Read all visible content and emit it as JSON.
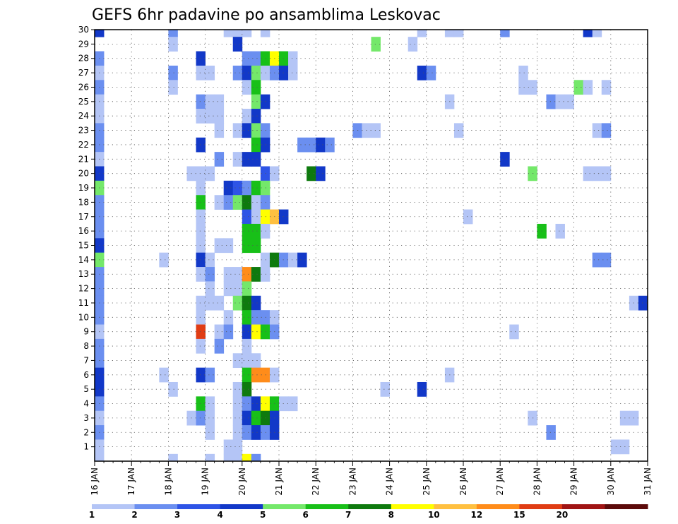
{
  "chart_data": {
    "type": "heatmap",
    "title": "GEFS 6hr padavine po ansamblima Leskovac",
    "x_tick_labels": [
      "16 JAN",
      "17 JAN",
      "18 JAN",
      "19 JAN",
      "20 JAN",
      "21 JAN",
      "22 JAN",
      "23 JAN",
      "24 JAN",
      "25 JAN",
      "26 JAN",
      "27 JAN",
      "28 JAN",
      "29 JAN",
      "30 JAN",
      "31 JAN"
    ],
    "y_tick_labels": [
      "1",
      "2",
      "3",
      "4",
      "5",
      "6",
      "7",
      "8",
      "9",
      "10",
      "11",
      "12",
      "13",
      "14",
      "15",
      "16",
      "17",
      "18",
      "19",
      "20",
      "21",
      "22",
      "23",
      "24",
      "25",
      "26",
      "27",
      "28",
      "29",
      "30"
    ],
    "xlim": [
      0,
      15
    ],
    "ylim": [
      0,
      30
    ],
    "time_step_hours": 6,
    "grid": "dotted",
    "colorbar": {
      "placement": "bottom",
      "labels": [
        "1",
        "2",
        "3",
        "4",
        "5",
        "6",
        "7",
        "8",
        "10",
        "12",
        "15",
        "20"
      ],
      "colors": [
        "#b4c5f6",
        "#6b8ff0",
        "#2e54e6",
        "#1238c8",
        "#74e86a",
        "#18c018",
        "#0e7a0e",
        "#ffff00",
        "#ffc040",
        "#ff8c1a",
        "#e03c14",
        "#a01414",
        "#5c0a0a"
      ]
    },
    "cells": [
      {
        "m": 30,
        "x": 0.0,
        "c": 3
      },
      {
        "m": 30,
        "x": 2.0,
        "c": 1
      },
      {
        "m": 30,
        "x": 3.5,
        "c": 0
      },
      {
        "m": 30,
        "x": 3.75,
        "c": 0
      },
      {
        "m": 30,
        "x": 4.0,
        "c": 0
      },
      {
        "m": 30,
        "x": 4.5,
        "c": 0
      },
      {
        "m": 30,
        "x": 8.75,
        "c": 0
      },
      {
        "m": 30,
        "x": 9.5,
        "c": 0
      },
      {
        "m": 30,
        "x": 9.75,
        "c": 0
      },
      {
        "m": 30,
        "x": 11.0,
        "c": 1
      },
      {
        "m": 30,
        "x": 13.25,
        "c": 3
      },
      {
        "m": 30,
        "x": 13.5,
        "c": 0
      },
      {
        "m": 29,
        "x": 2.0,
        "c": 0
      },
      {
        "m": 29,
        "x": 3.75,
        "c": 3
      },
      {
        "m": 29,
        "x": 7.5,
        "c": 4
      },
      {
        "m": 29,
        "x": 8.5,
        "c": 0
      },
      {
        "m": 28,
        "x": 0.0,
        "c": 1
      },
      {
        "m": 28,
        "x": 2.75,
        "c": 3
      },
      {
        "m": 28,
        "x": 4.0,
        "c": 1
      },
      {
        "m": 28,
        "x": 4.25,
        "c": 1
      },
      {
        "m": 28,
        "x": 4.5,
        "c": 5
      },
      {
        "m": 28,
        "x": 4.75,
        "c": 7
      },
      {
        "m": 28,
        "x": 5.0,
        "c": 5
      },
      {
        "m": 28,
        "x": 5.25,
        "c": 0
      },
      {
        "m": 27,
        "x": 0.0,
        "c": 0
      },
      {
        "m": 27,
        "x": 2.0,
        "c": 1
      },
      {
        "m": 27,
        "x": 2.75,
        "c": 0
      },
      {
        "m": 27,
        "x": 3.0,
        "c": 0
      },
      {
        "m": 27,
        "x": 3.75,
        "c": 1
      },
      {
        "m": 27,
        "x": 4.0,
        "c": 3
      },
      {
        "m": 27,
        "x": 4.25,
        "c": 4
      },
      {
        "m": 27,
        "x": 4.5,
        "c": 0
      },
      {
        "m": 27,
        "x": 4.75,
        "c": 1
      },
      {
        "m": 27,
        "x": 5.0,
        "c": 3
      },
      {
        "m": 27,
        "x": 5.25,
        "c": 0
      },
      {
        "m": 27,
        "x": 8.75,
        "c": 3
      },
      {
        "m": 27,
        "x": 9.0,
        "c": 1
      },
      {
        "m": 27,
        "x": 11.5,
        "c": 0
      },
      {
        "m": 26,
        "x": 0.0,
        "c": 1
      },
      {
        "m": 26,
        "x": 2.0,
        "c": 0
      },
      {
        "m": 26,
        "x": 4.0,
        "c": 0
      },
      {
        "m": 26,
        "x": 4.25,
        "c": 5
      },
      {
        "m": 26,
        "x": 11.5,
        "c": 0
      },
      {
        "m": 26,
        "x": 11.75,
        "c": 0
      },
      {
        "m": 26,
        "x": 13.0,
        "c": 4
      },
      {
        "m": 26,
        "x": 13.25,
        "c": 0
      },
      {
        "m": 26,
        "x": 13.75,
        "c": 0
      },
      {
        "m": 25,
        "x": 0.0,
        "c": 0
      },
      {
        "m": 25,
        "x": 2.75,
        "c": 1
      },
      {
        "m": 25,
        "x": 3.0,
        "c": 0
      },
      {
        "m": 25,
        "x": 3.25,
        "c": 0
      },
      {
        "m": 25,
        "x": 4.25,
        "c": 4
      },
      {
        "m": 25,
        "x": 4.5,
        "c": 3
      },
      {
        "m": 25,
        "x": 9.5,
        "c": 0
      },
      {
        "m": 25,
        "x": 12.25,
        "c": 1
      },
      {
        "m": 25,
        "x": 12.5,
        "c": 0
      },
      {
        "m": 25,
        "x": 12.75,
        "c": 0
      },
      {
        "m": 24,
        "x": 0.0,
        "c": 0
      },
      {
        "m": 24,
        "x": 2.75,
        "c": 0
      },
      {
        "m": 24,
        "x": 3.0,
        "c": 0
      },
      {
        "m": 24,
        "x": 3.25,
        "c": 0
      },
      {
        "m": 24,
        "x": 4.0,
        "c": 0
      },
      {
        "m": 24,
        "x": 4.25,
        "c": 3
      },
      {
        "m": 23,
        "x": 0.0,
        "c": 1
      },
      {
        "m": 23,
        "x": 3.25,
        "c": 0
      },
      {
        "m": 23,
        "x": 3.75,
        "c": 0
      },
      {
        "m": 23,
        "x": 4.0,
        "c": 3
      },
      {
        "m": 23,
        "x": 4.25,
        "c": 4
      },
      {
        "m": 23,
        "x": 4.5,
        "c": 1
      },
      {
        "m": 23,
        "x": 7.0,
        "c": 1
      },
      {
        "m": 23,
        "x": 7.25,
        "c": 0
      },
      {
        "m": 23,
        "x": 7.5,
        "c": 0
      },
      {
        "m": 23,
        "x": 9.75,
        "c": 0
      },
      {
        "m": 23,
        "x": 13.5,
        "c": 0
      },
      {
        "m": 23,
        "x": 13.75,
        "c": 1
      },
      {
        "m": 22,
        "x": 0.0,
        "c": 1
      },
      {
        "m": 22,
        "x": 2.75,
        "c": 3
      },
      {
        "m": 22,
        "x": 4.25,
        "c": 5
      },
      {
        "m": 22,
        "x": 4.5,
        "c": 3
      },
      {
        "m": 22,
        "x": 5.5,
        "c": 1
      },
      {
        "m": 22,
        "x": 5.75,
        "c": 1
      },
      {
        "m": 22,
        "x": 6.0,
        "c": 3
      },
      {
        "m": 22,
        "x": 6.25,
        "c": 1
      },
      {
        "m": 21,
        "x": 0.0,
        "c": 0
      },
      {
        "m": 21,
        "x": 3.25,
        "c": 1
      },
      {
        "m": 21,
        "x": 3.75,
        "c": 0
      },
      {
        "m": 21,
        "x": 4.0,
        "c": 3
      },
      {
        "m": 21,
        "x": 4.25,
        "c": 3
      },
      {
        "m": 21,
        "x": 11.0,
        "c": 3
      },
      {
        "m": 20,
        "x": 0.0,
        "c": 3
      },
      {
        "m": 20,
        "x": 2.5,
        "c": 0
      },
      {
        "m": 20,
        "x": 2.75,
        "c": 0
      },
      {
        "m": 20,
        "x": 3.0,
        "c": 0
      },
      {
        "m": 20,
        "x": 4.5,
        "c": 2
      },
      {
        "m": 20,
        "x": 4.75,
        "c": 0
      },
      {
        "m": 20,
        "x": 5.75,
        "c": 6
      },
      {
        "m": 20,
        "x": 6.0,
        "c": 3
      },
      {
        "m": 20,
        "x": 11.75,
        "c": 4
      },
      {
        "m": 20,
        "x": 13.25,
        "c": 0
      },
      {
        "m": 20,
        "x": 13.5,
        "c": 0
      },
      {
        "m": 20,
        "x": 13.75,
        "c": 0
      },
      {
        "m": 19,
        "x": 0.0,
        "c": 4
      },
      {
        "m": 19,
        "x": 2.75,
        "c": 0
      },
      {
        "m": 19,
        "x": 3.5,
        "c": 3
      },
      {
        "m": 19,
        "x": 3.75,
        "c": 2
      },
      {
        "m": 19,
        "x": 4.0,
        "c": 1
      },
      {
        "m": 19,
        "x": 4.25,
        "c": 5
      },
      {
        "m": 19,
        "x": 4.5,
        "c": 4
      },
      {
        "m": 18,
        "x": 0.0,
        "c": 1
      },
      {
        "m": 18,
        "x": 2.75,
        "c": 5
      },
      {
        "m": 18,
        "x": 3.25,
        "c": 0
      },
      {
        "m": 18,
        "x": 3.5,
        "c": 1
      },
      {
        "m": 18,
        "x": 3.75,
        "c": 4
      },
      {
        "m": 18,
        "x": 4.0,
        "c": 6
      },
      {
        "m": 18,
        "x": 4.25,
        "c": 0
      },
      {
        "m": 18,
        "x": 4.5,
        "c": 1
      },
      {
        "m": 17,
        "x": 0.0,
        "c": 1
      },
      {
        "m": 17,
        "x": 2.75,
        "c": 0
      },
      {
        "m": 17,
        "x": 4.0,
        "c": 2
      },
      {
        "m": 17,
        "x": 4.25,
        "c": 0
      },
      {
        "m": 17,
        "x": 4.5,
        "c": 7
      },
      {
        "m": 17,
        "x": 4.75,
        "c": 8
      },
      {
        "m": 17,
        "x": 5.0,
        "c": 3
      },
      {
        "m": 17,
        "x": 10.0,
        "c": 0
      },
      {
        "m": 16,
        "x": 0.0,
        "c": 1
      },
      {
        "m": 16,
        "x": 2.75,
        "c": 0
      },
      {
        "m": 16,
        "x": 4.0,
        "c": 5
      },
      {
        "m": 16,
        "x": 4.25,
        "c": 5
      },
      {
        "m": 16,
        "x": 4.5,
        "c": 0
      },
      {
        "m": 16,
        "x": 12.0,
        "c": 5
      },
      {
        "m": 16,
        "x": 12.5,
        "c": 0
      },
      {
        "m": 15,
        "x": 0.0,
        "c": 3
      },
      {
        "m": 15,
        "x": 2.75,
        "c": 0
      },
      {
        "m": 15,
        "x": 3.25,
        "c": 0
      },
      {
        "m": 15,
        "x": 3.5,
        "c": 0
      },
      {
        "m": 15,
        "x": 4.0,
        "c": 5
      },
      {
        "m": 15,
        "x": 4.25,
        "c": 5
      },
      {
        "m": 14,
        "x": 0.0,
        "c": 4
      },
      {
        "m": 14,
        "x": 1.75,
        "c": 0
      },
      {
        "m": 14,
        "x": 2.75,
        "c": 3
      },
      {
        "m": 14,
        "x": 3.0,
        "c": 0
      },
      {
        "m": 14,
        "x": 4.5,
        "c": 0
      },
      {
        "m": 14,
        "x": 4.75,
        "c": 6
      },
      {
        "m": 14,
        "x": 5.0,
        "c": 1
      },
      {
        "m": 14,
        "x": 5.25,
        "c": 0
      },
      {
        "m": 14,
        "x": 5.5,
        "c": 3
      },
      {
        "m": 14,
        "x": 13.5,
        "c": 1
      },
      {
        "m": 14,
        "x": 13.75,
        "c": 1
      },
      {
        "m": 13,
        "x": 0.0,
        "c": 1
      },
      {
        "m": 13,
        "x": 2.75,
        "c": 0
      },
      {
        "m": 13,
        "x": 3.0,
        "c": 1
      },
      {
        "m": 13,
        "x": 3.5,
        "c": 0
      },
      {
        "m": 13,
        "x": 3.75,
        "c": 0
      },
      {
        "m": 13,
        "x": 4.0,
        "c": 9
      },
      {
        "m": 13,
        "x": 4.25,
        "c": 6
      },
      {
        "m": 13,
        "x": 4.5,
        "c": 0
      },
      {
        "m": 12,
        "x": 0.0,
        "c": 1
      },
      {
        "m": 12,
        "x": 3.0,
        "c": 0
      },
      {
        "m": 12,
        "x": 3.5,
        "c": 0
      },
      {
        "m": 12,
        "x": 3.75,
        "c": 0
      },
      {
        "m": 12,
        "x": 4.0,
        "c": 4
      },
      {
        "m": 11,
        "x": 0.0,
        "c": 1
      },
      {
        "m": 11,
        "x": 2.75,
        "c": 0
      },
      {
        "m": 11,
        "x": 3.0,
        "c": 0
      },
      {
        "m": 11,
        "x": 3.25,
        "c": 0
      },
      {
        "m": 11,
        "x": 3.75,
        "c": 4
      },
      {
        "m": 11,
        "x": 4.0,
        "c": 6
      },
      {
        "m": 11,
        "x": 4.25,
        "c": 3
      },
      {
        "m": 11,
        "x": 14.5,
        "c": 0
      },
      {
        "m": 11,
        "x": 14.75,
        "c": 3
      },
      {
        "m": 10,
        "x": 0.0,
        "c": 1
      },
      {
        "m": 10,
        "x": 2.75,
        "c": 0
      },
      {
        "m": 10,
        "x": 3.5,
        "c": 0
      },
      {
        "m": 10,
        "x": 4.0,
        "c": 5
      },
      {
        "m": 10,
        "x": 4.25,
        "c": 1
      },
      {
        "m": 10,
        "x": 4.5,
        "c": 1
      },
      {
        "m": 10,
        "x": 4.75,
        "c": 0
      },
      {
        "m": 9,
        "x": 0.0,
        "c": 0
      },
      {
        "m": 9,
        "x": 2.75,
        "c": 10
      },
      {
        "m": 9,
        "x": 3.25,
        "c": 0
      },
      {
        "m": 9,
        "x": 3.5,
        "c": 1
      },
      {
        "m": 9,
        "x": 4.0,
        "c": 3
      },
      {
        "m": 9,
        "x": 4.25,
        "c": 7
      },
      {
        "m": 9,
        "x": 4.5,
        "c": 5
      },
      {
        "m": 9,
        "x": 4.75,
        "c": 1
      },
      {
        "m": 9,
        "x": 11.25,
        "c": 0
      },
      {
        "m": 8,
        "x": 0.0,
        "c": 1
      },
      {
        "m": 8,
        "x": 2.75,
        "c": 0
      },
      {
        "m": 8,
        "x": 3.25,
        "c": 1
      },
      {
        "m": 8,
        "x": 4.0,
        "c": 0
      },
      {
        "m": 7,
        "x": 0.0,
        "c": 1
      },
      {
        "m": 7,
        "x": 3.75,
        "c": 0
      },
      {
        "m": 7,
        "x": 4.0,
        "c": 0
      },
      {
        "m": 7,
        "x": 4.25,
        "c": 0
      },
      {
        "m": 6,
        "x": 0.0,
        "c": 3
      },
      {
        "m": 6,
        "x": 1.75,
        "c": 0
      },
      {
        "m": 6,
        "x": 2.75,
        "c": 3
      },
      {
        "m": 6,
        "x": 3.0,
        "c": 1
      },
      {
        "m": 6,
        "x": 4.0,
        "c": 5
      },
      {
        "m": 6,
        "x": 4.25,
        "c": 9
      },
      {
        "m": 6,
        "x": 4.5,
        "c": 9
      },
      {
        "m": 6,
        "x": 4.75,
        "c": 0
      },
      {
        "m": 6,
        "x": 9.5,
        "c": 0
      },
      {
        "m": 5,
        "x": 0.0,
        "c": 3
      },
      {
        "m": 5,
        "x": 2.0,
        "c": 0
      },
      {
        "m": 5,
        "x": 3.75,
        "c": 0
      },
      {
        "m": 5,
        "x": 4.0,
        "c": 6
      },
      {
        "m": 5,
        "x": 7.75,
        "c": 0
      },
      {
        "m": 5,
        "x": 8.75,
        "c": 3
      },
      {
        "m": 4,
        "x": 0.0,
        "c": 1
      },
      {
        "m": 4,
        "x": 2.75,
        "c": 5
      },
      {
        "m": 4,
        "x": 3.0,
        "c": 0
      },
      {
        "m": 4,
        "x": 3.75,
        "c": 0
      },
      {
        "m": 4,
        "x": 4.0,
        "c": 1
      },
      {
        "m": 4,
        "x": 4.25,
        "c": 3
      },
      {
        "m": 4,
        "x": 4.5,
        "c": 7
      },
      {
        "m": 4,
        "x": 4.75,
        "c": 5
      },
      {
        "m": 4,
        "x": 5.0,
        "c": 0
      },
      {
        "m": 4,
        "x": 5.25,
        "c": 0
      },
      {
        "m": 3,
        "x": 0.0,
        "c": 0
      },
      {
        "m": 3,
        "x": 2.5,
        "c": 0
      },
      {
        "m": 3,
        "x": 2.75,
        "c": 1
      },
      {
        "m": 3,
        "x": 3.0,
        "c": 0
      },
      {
        "m": 3,
        "x": 3.75,
        "c": 0
      },
      {
        "m": 3,
        "x": 4.0,
        "c": 3
      },
      {
        "m": 3,
        "x": 4.25,
        "c": 5
      },
      {
        "m": 3,
        "x": 4.5,
        "c": 6
      },
      {
        "m": 3,
        "x": 4.75,
        "c": 3
      },
      {
        "m": 3,
        "x": 11.75,
        "c": 0
      },
      {
        "m": 3,
        "x": 14.25,
        "c": 0
      },
      {
        "m": 3,
        "x": 14.5,
        "c": 0
      },
      {
        "m": 2,
        "x": 0.0,
        "c": 1
      },
      {
        "m": 2,
        "x": 3.0,
        "c": 0
      },
      {
        "m": 2,
        "x": 3.75,
        "c": 0
      },
      {
        "m": 2,
        "x": 4.0,
        "c": 1
      },
      {
        "m": 2,
        "x": 4.25,
        "c": 3
      },
      {
        "m": 2,
        "x": 4.5,
        "c": 1
      },
      {
        "m": 2,
        "x": 4.75,
        "c": 3
      },
      {
        "m": 2,
        "x": 12.25,
        "c": 1
      },
      {
        "m": 1,
        "x": 0.0,
        "c": 0
      },
      {
        "m": 1,
        "x": 3.5,
        "c": 0
      },
      {
        "m": 1,
        "x": 3.75,
        "c": 0
      },
      {
        "m": 1,
        "x": 14.0,
        "c": 0
      },
      {
        "m": 1,
        "x": 14.25,
        "c": 0
      },
      {
        "m": 0,
        "x": 0.0,
        "c": 0
      },
      {
        "m": 0,
        "x": 2.0,
        "c": 0
      },
      {
        "m": 0,
        "x": 3.0,
        "c": 0
      },
      {
        "m": 0,
        "x": 3.5,
        "c": 0
      },
      {
        "m": 0,
        "x": 3.75,
        "c": 0
      },
      {
        "m": 0,
        "x": 4.0,
        "c": 7
      },
      {
        "m": 0,
        "x": 4.25,
        "c": 1
      }
    ]
  }
}
